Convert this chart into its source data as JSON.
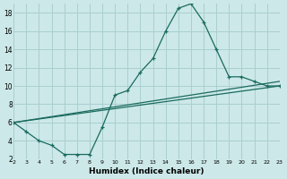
{
  "xlabel": "Humidex (Indice chaleur)",
  "xlim": [
    2,
    23
  ],
  "ylim": [
    2,
    19
  ],
  "xticks": [
    2,
    3,
    4,
    5,
    6,
    7,
    8,
    9,
    10,
    11,
    12,
    13,
    14,
    15,
    16,
    17,
    18,
    19,
    20,
    21,
    22,
    23
  ],
  "yticks": [
    2,
    4,
    6,
    8,
    10,
    12,
    14,
    16,
    18
  ],
  "bg_color": "#cce8e8",
  "grid_color": "#aacfcf",
  "line_color": "#1a6b5e",
  "line1_x": [
    2,
    23
  ],
  "line1_y": [
    6,
    10
  ],
  "line2_x": [
    2,
    23
  ],
  "line2_y": [
    6,
    10.5
  ],
  "line3_x": [
    2,
    3,
    4,
    5,
    6,
    7,
    8,
    9,
    10,
    11,
    12,
    13,
    14,
    15,
    16,
    17,
    18,
    19,
    20,
    21,
    22,
    23
  ],
  "line3_y": [
    6,
    5,
    4,
    3.5,
    2.5,
    2.5,
    2.5,
    5.5,
    9,
    9.5,
    11.5,
    13,
    16,
    18.5,
    19,
    17,
    14,
    11,
    11,
    10.5,
    10,
    10
  ]
}
